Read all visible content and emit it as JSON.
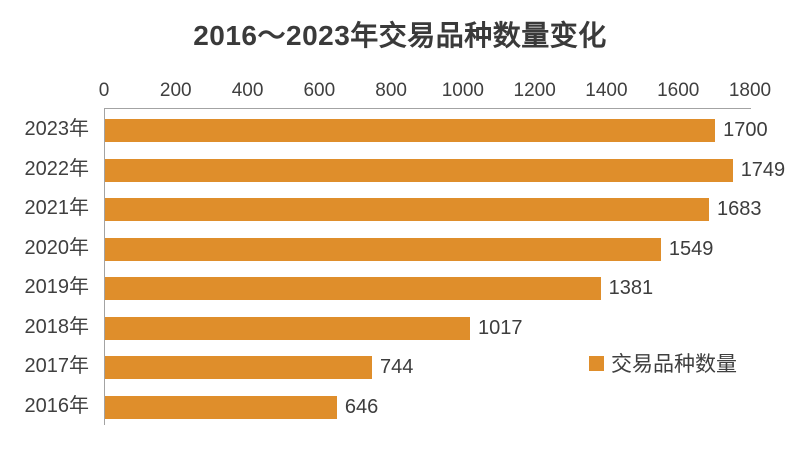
{
  "title": "2016～2023年交易品种数量变化",
  "legend": {
    "label": "交易品种数量",
    "swatch_color": "#df8e2b"
  },
  "colors": {
    "bar": "#df8e2b",
    "axis_line": "#a3a3a3",
    "text": "#3f3f3f",
    "background": "#ffffff"
  },
  "chart_data": {
    "type": "bar",
    "orientation": "horizontal",
    "title": "2016～2023年交易品种数量变化",
    "series_name": "交易品种数量",
    "categories": [
      "2023年",
      "2022年",
      "2021年",
      "2020年",
      "2019年",
      "2018年",
      "2017年",
      "2016年"
    ],
    "values": [
      1700,
      1749,
      1683,
      1549,
      1381,
      1017,
      744,
      646
    ],
    "data_labels": [
      "1700",
      "1749",
      "1683",
      "1549",
      "1381",
      "1017",
      "744",
      "646"
    ],
    "xlabel": "",
    "ylabel": "",
    "axis": {
      "position": "top",
      "min": 0,
      "max": 1800,
      "tick_step": 200,
      "tick_labels": [
        "0",
        "200",
        "400",
        "600",
        "800",
        "1000",
        "1200",
        "1400",
        "1600",
        "1800"
      ]
    },
    "grid": false,
    "legend_position": "inside-right",
    "bar_color": "#df8e2b"
  }
}
